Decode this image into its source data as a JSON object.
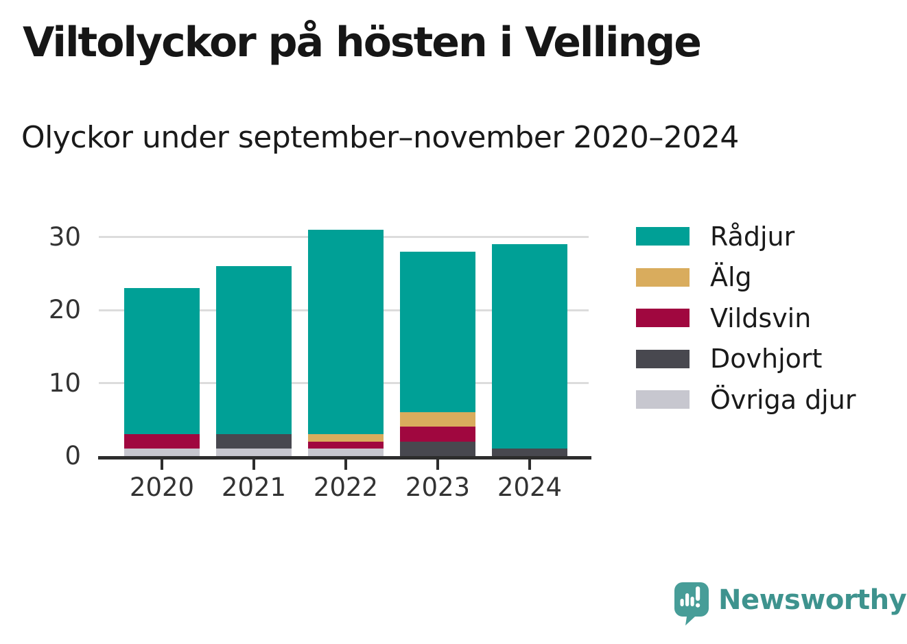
{
  "header": {
    "title": "Viltolyckor på hösten i Vellinge",
    "subtitle": "Olyckor under september–november 2020–2024"
  },
  "chart_data": {
    "type": "bar",
    "stacked": true,
    "title": "Viltolyckor på hösten i Vellinge",
    "subtitle": "Olyckor under september–november 2020–2024",
    "categories": [
      "2020",
      "2021",
      "2022",
      "2023",
      "2024"
    ],
    "series": [
      {
        "name": "Rådjur",
        "key": "radjur",
        "color": "#00a096",
        "values": [
          20,
          23,
          28,
          22,
          28
        ]
      },
      {
        "name": "Älg",
        "key": "alg",
        "color": "#d9ac5d",
        "values": [
          0,
          0,
          1,
          2,
          0
        ]
      },
      {
        "name": "Vildsvin",
        "key": "vildsvin",
        "color": "#a0073f",
        "values": [
          2,
          0,
          1,
          2,
          0
        ]
      },
      {
        "name": "Dovhjort",
        "key": "dovhjort",
        "color": "#48484f",
        "values": [
          0,
          2,
          0,
          2,
          1
        ]
      },
      {
        "name": "Övriga djur",
        "key": "ovriga-djur",
        "color": "#c7c7cf",
        "values": [
          1,
          1,
          1,
          0,
          0
        ]
      }
    ],
    "stack_order_bottom_to_top": [
      "ovriga-djur",
      "dovhjort",
      "vildsvin",
      "alg",
      "radjur"
    ],
    "totals": [
      23,
      26,
      31,
      28,
      29
    ],
    "xlabel": "",
    "ylabel": "",
    "yticks": [
      0,
      10,
      20,
      30
    ],
    "ylim": [
      0,
      33
    ],
    "grid": "horizontal",
    "legend_position": "right"
  },
  "colors": {
    "background": "#ffffff",
    "text": "#1a1a1a",
    "axis": "#2d2d2d",
    "tick_label": "#333333",
    "gridline": "#dcdcdc"
  },
  "branding": {
    "name": "Newsworthy",
    "color": "#3e938e",
    "icon_color": "#479d98",
    "icon": "newsworthy-speech-bubble-bar-chart-icon"
  }
}
